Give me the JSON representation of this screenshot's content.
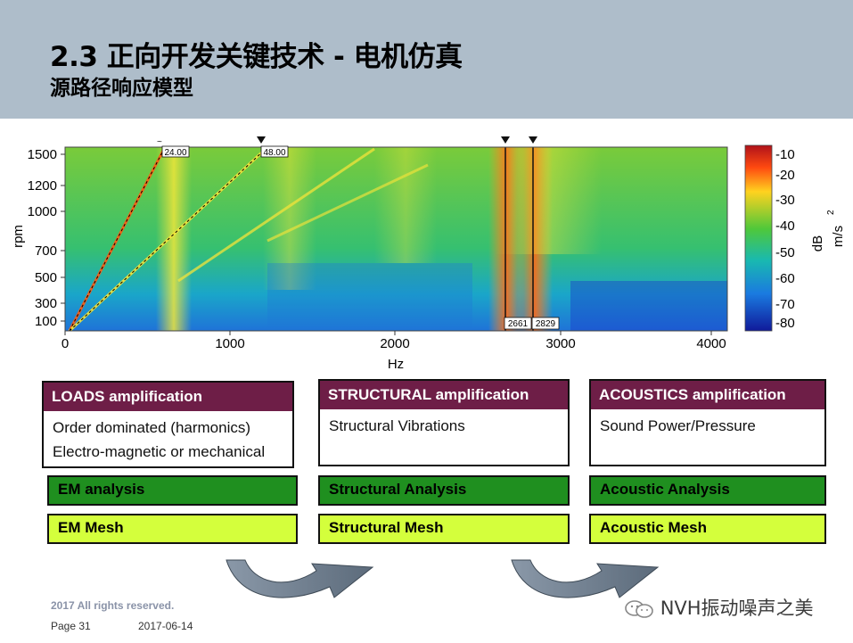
{
  "header": {
    "title": "2.3 正向开发关键技术 - 电机仿真",
    "subtitle": "源路径响应模型"
  },
  "chart_data": {
    "type": "heatmap",
    "xlabel": "Hz",
    "ylabel": "rpm",
    "x_ticks": [
      "0",
      "1000",
      "2000",
      "3000",
      "4000"
    ],
    "y_ticks": [
      "1500",
      "1200",
      "1000",
      "700",
      "500",
      "300",
      "100"
    ],
    "xlim": [
      0,
      4000
    ],
    "ylim": [
      0,
      1550
    ],
    "colorbar": {
      "ticks": [
        "-10",
        "-20",
        "-30",
        "-40",
        "-50",
        "-60",
        "-70",
        "-80"
      ],
      "unit_db": "dB",
      "unit": "m/s"
    },
    "order_labels": [
      "24.00",
      "48.00"
    ],
    "cursor_labels": [
      "2661",
      "2829"
    ],
    "cursors_hz": [
      2661,
      2829
    ]
  },
  "panels": [
    {
      "header": "LOADS amplification",
      "lines": [
        "Order dominated (harmonics)",
        "Electro-magnetic or mechanical"
      ],
      "analysis": "EM analysis",
      "mesh": "EM Mesh"
    },
    {
      "header": "STRUCTURAL amplification",
      "lines": [
        "Structural Vibrations"
      ],
      "analysis": "Structural Analysis",
      "mesh": "Structural Mesh"
    },
    {
      "header": "ACOUSTICS amplification",
      "lines": [
        "Sound Power/Pressure"
      ],
      "analysis": "Acoustic Analysis",
      "mesh": "Acoustic Mesh"
    }
  ],
  "footer": {
    "copyright": "2017 All rights reserved.",
    "page": "Page 31",
    "date": "2017-06-14",
    "watermark": "NVH振动噪声之美"
  },
  "colors": {
    "header_bg": "#aebdca",
    "panel_header": "#6e1e47",
    "analysis_bar": "#1f8f1f",
    "mesh_bar": "#d4ff3c",
    "arrow": "#6f7f8f"
  }
}
